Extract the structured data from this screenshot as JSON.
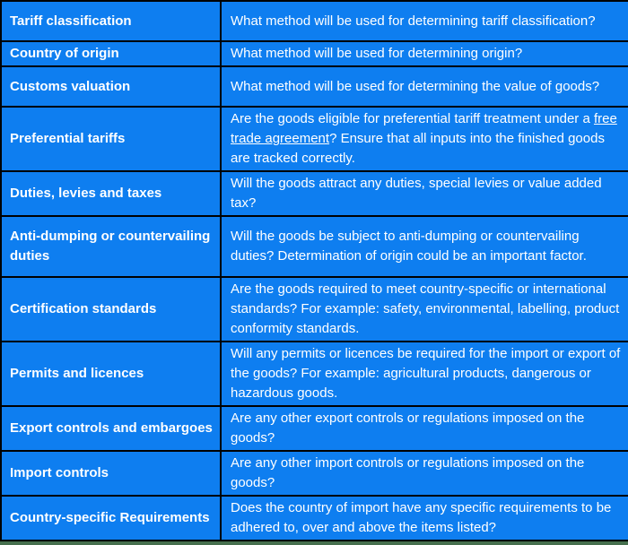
{
  "colors": {
    "cell_blue": "#0e7ef0",
    "border_black": "#000000",
    "text_white": "#ffffff",
    "footer_green": "#46704e"
  },
  "table": {
    "rows": [
      {
        "label": "Tariff classification",
        "question": "What method will be used for determining tariff classification?"
      },
      {
        "label": "Country of origin",
        "question": "What method will be used for determining origin?"
      },
      {
        "label": "Customs valuation",
        "question": "What method will be used for determining the value of goods?"
      },
      {
        "label": "Preferential tariffs",
        "question_parts": {
          "before": "Are the goods eligible for preferential tariff treatment under a ",
          "link": "free trade agreement",
          "after": "? Ensure that all inputs into the finished goods are tracked correctly."
        }
      },
      {
        "label": "Duties, levies and taxes",
        "question": "Will the goods attract any duties, special levies or value added tax?"
      },
      {
        "label": "Anti-dumping or countervailing duties",
        "question": "Will the goods be subject to anti-dumping or countervailing duties? Determination of origin could be an important factor."
      },
      {
        "label": "Certification standards",
        "question": "Are the goods required to meet country-specific or international standards? For example: safety, environmental, labelling, product conformity standards."
      },
      {
        "label": "Permits and licences",
        "question": "Will any permits or licences be required for the import or export of the goods? For example: agricultural products, dangerous or hazardous goods."
      },
      {
        "label": "Export controls and embargoes",
        "question": "Are any other export controls or regulations imposed on the goods?"
      },
      {
        "label": "Import controls",
        "question": "Are any other import controls or regulations imposed on the goods?"
      },
      {
        "label": "Country-specific Requirements",
        "question": "Does the country of import have any specific requirements to be adhered to, over and above the items listed?"
      }
    ]
  }
}
